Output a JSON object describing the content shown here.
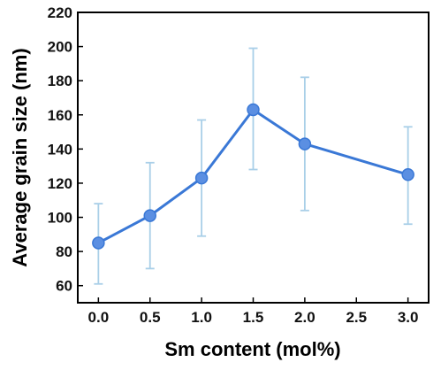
{
  "chart_data": {
    "type": "line",
    "title": "",
    "xlabel": "Sm content (mol%)",
    "ylabel": "Average grain size (nm)",
    "xlim": [
      -0.2,
      3.2
    ],
    "ylim": [
      50,
      220
    ],
    "x_ticks": [
      "0.0",
      "0.5",
      "1.0",
      "1.5",
      "2.0",
      "2.5",
      "3.0"
    ],
    "y_ticks": [
      "60",
      "80",
      "100",
      "120",
      "140",
      "160",
      "180",
      "200",
      "220"
    ],
    "series": [
      {
        "x": [
          0.0,
          0.5,
          1.0,
          1.5,
          2.0,
          3.0
        ],
        "y": [
          85,
          101,
          123,
          163,
          143,
          125
        ],
        "err_low": [
          61,
          70,
          89,
          128,
          104,
          96
        ],
        "err_high": [
          108,
          132,
          157,
          199,
          182,
          153
        ]
      }
    ],
    "grid": false,
    "legend": "none",
    "colors": {
      "line": "#3a78d6",
      "marker": "#5b8fe2",
      "errorbar": "#a9cfe8",
      "axis": "#000000"
    }
  }
}
